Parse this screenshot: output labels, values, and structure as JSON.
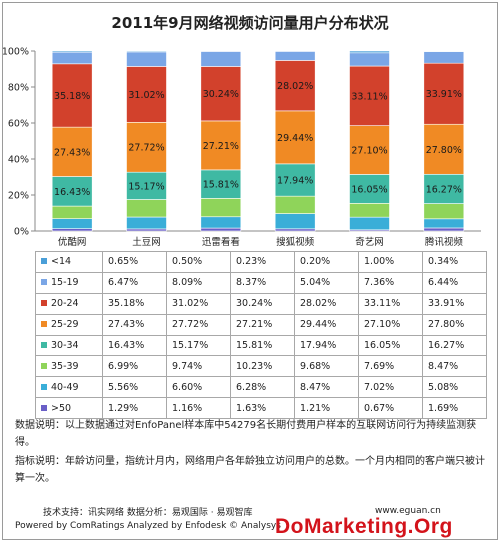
{
  "title": "2011年9月网络视频访问量用户分布状况",
  "chart_data": {
    "type": "bar",
    "stacked": true,
    "percent": true,
    "ylim": [
      0,
      100
    ],
    "yticks": [
      "0%",
      "20%",
      "40%",
      "60%",
      "80%",
      "100%"
    ],
    "categories": [
      "优酷网",
      "土豆网",
      "迅雷看看",
      "搜狐视频",
      "奇艺网",
      "腾讯视频"
    ],
    "series": [
      {
        "name": "<14",
        "color": "#4a9fd8",
        "values": [
          0.65,
          0.5,
          0.23,
          0.2,
          1.0,
          0.34
        ],
        "labels": [
          "0.65%",
          "0.50%",
          "0.23%",
          "0.20%",
          "1.00%",
          "0.34%"
        ]
      },
      {
        "name": "15-19",
        "color": "#7aa6e6",
        "values": [
          6.47,
          8.09,
          8.37,
          5.04,
          7.36,
          6.44
        ],
        "labels": [
          "6.47%",
          "8.09%",
          "8.37%",
          "5.04%",
          "7.36%",
          "6.44%"
        ]
      },
      {
        "name": "20-24",
        "color": "#d2412c",
        "values": [
          35.18,
          31.02,
          30.24,
          28.02,
          33.11,
          33.91
        ],
        "labels": [
          "35.18%",
          "31.02%",
          "30.24%",
          "28.02%",
          "33.11%",
          "33.91%"
        ]
      },
      {
        "name": "25-29",
        "color": "#f08a24",
        "values": [
          27.43,
          27.72,
          27.21,
          29.44,
          27.1,
          27.8
        ],
        "labels": [
          "27.43%",
          "27.72%",
          "27.21%",
          "29.44%",
          "27.10%",
          "27.80%"
        ]
      },
      {
        "name": "30-34",
        "color": "#3fb9a3",
        "values": [
          16.43,
          15.17,
          15.81,
          17.94,
          16.05,
          16.27
        ],
        "labels": [
          "16.43%",
          "15.17%",
          "15.81%",
          "17.94%",
          "16.05%",
          "16.27%"
        ]
      },
      {
        "name": "35-39",
        "color": "#8fd45a",
        "values": [
          6.99,
          9.74,
          10.23,
          9.68,
          7.69,
          8.47
        ],
        "labels": [
          "6.99%",
          "9.74%",
          "10.23%",
          "9.68%",
          "7.69%",
          "8.47%"
        ]
      },
      {
        "name": "40-49",
        "color": "#3aaed8",
        "values": [
          5.56,
          6.6,
          6.28,
          8.47,
          7.02,
          5.08
        ],
        "labels": [
          "5.56%",
          "6.60%",
          "6.28%",
          "8.47%",
          "7.02%",
          "5.08%"
        ]
      },
      {
        "name": ">50",
        "color": "#6a5fc7",
        "values": [
          1.29,
          1.16,
          1.63,
          1.21,
          0.67,
          1.69
        ],
        "labels": [
          "1.29%",
          "1.16%",
          "1.63%",
          "1.21%",
          "0.67%",
          "1.69%"
        ]
      }
    ],
    "bar_labels": [
      "20-24",
      "25-29",
      "30-34"
    ],
    "table_order": [
      "<14",
      "15-19",
      "20-24",
      "25-29",
      "30-34",
      "35-39",
      "40-49",
      ">50"
    ],
    "stack_order": [
      ">50",
      "40-49",
      "35-39",
      "30-34",
      "25-29",
      "20-24",
      "15-19",
      "<14"
    ]
  },
  "notes": {
    "data_note": "数据说明：以上数据通过对EnfoPanel样本库中54279名长期付费用户样本的互联网访问行为持续监测获得。",
    "metric_note": "指标说明：年龄访问量，指统计月内，网络用户各年龄独立访问用户的总数。一个月内相同的客户端只被计算一次。"
  },
  "footer": {
    "support": "技术支持：讯实网络     数据分析：易观国际 · 易观智库",
    "powered": "Powered by ComRatings   Analyzed by Enfodesk © Analysys",
    "site": "www.eguan.cn"
  },
  "watermark": "DoMarketing.Org"
}
